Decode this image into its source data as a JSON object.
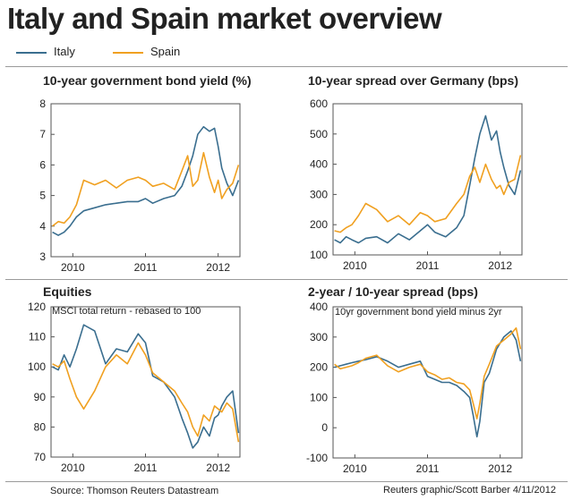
{
  "title": "Italy and Spain market overview",
  "legend": [
    {
      "label": "Italy",
      "color": "#3a6e8f"
    },
    {
      "label": "Spain",
      "color": "#f0a020"
    }
  ],
  "source": "Source: Thomson Reuters Datastream",
  "credit": "Reuters graphic/Scott Barber 4/11/2012",
  "chart_data": [
    {
      "type": "line",
      "title": "10-year government bond yield (%)",
      "subtitle": "",
      "ylim": [
        3,
        8
      ],
      "yticks": [
        3,
        4,
        5,
        6,
        7,
        8
      ],
      "xlim": [
        2009.7,
        2012.3
      ],
      "xticks": [
        {
          "value": 2010,
          "label": "2010"
        },
        {
          "value": 2011,
          "label": "2011"
        },
        {
          "value": 2012,
          "label": "2012"
        }
      ],
      "grid": false,
      "series": [
        {
          "name": "Italy",
          "x": [
            2009.72,
            2009.8,
            2009.88,
            2009.96,
            2010.05,
            2010.15,
            2010.3,
            2010.45,
            2010.6,
            2010.75,
            2010.9,
            2011.0,
            2011.1,
            2011.25,
            2011.4,
            2011.5,
            2011.58,
            2011.65,
            2011.72,
            2011.8,
            2011.88,
            2011.95,
            2012.0,
            2012.05,
            2012.12,
            2012.2,
            2012.28
          ],
          "y": [
            3.8,
            3.7,
            3.8,
            4.0,
            4.3,
            4.5,
            4.6,
            4.7,
            4.75,
            4.8,
            4.8,
            4.9,
            4.75,
            4.9,
            5.0,
            5.3,
            5.8,
            6.3,
            7.0,
            7.25,
            7.1,
            7.2,
            6.6,
            5.9,
            5.4,
            5.0,
            5.5
          ]
        },
        {
          "name": "Spain",
          "x": [
            2009.72,
            2009.8,
            2009.88,
            2009.96,
            2010.05,
            2010.15,
            2010.3,
            2010.45,
            2010.6,
            2010.75,
            2010.9,
            2011.0,
            2011.1,
            2011.25,
            2011.4,
            2011.5,
            2011.58,
            2011.65,
            2011.72,
            2011.8,
            2011.88,
            2011.95,
            2012.0,
            2012.05,
            2012.12,
            2012.2,
            2012.28
          ],
          "y": [
            4.0,
            4.15,
            4.1,
            4.3,
            4.7,
            5.5,
            5.35,
            5.5,
            5.25,
            5.5,
            5.6,
            5.5,
            5.3,
            5.4,
            5.2,
            5.8,
            6.3,
            5.3,
            5.5,
            6.4,
            5.6,
            5.1,
            5.5,
            4.9,
            5.2,
            5.4,
            6.0
          ]
        }
      ]
    },
    {
      "type": "line",
      "title": "10-year spread over Germany (bps)",
      "subtitle": "",
      "ylim": [
        100,
        600
      ],
      "yticks": [
        100,
        200,
        300,
        400,
        500,
        600
      ],
      "xlim": [
        2009.7,
        2012.3
      ],
      "xticks": [
        {
          "value": 2010,
          "label": "2010"
        },
        {
          "value": 2011,
          "label": "2011"
        },
        {
          "value": 2012,
          "label": "2012"
        }
      ],
      "grid": false,
      "series": [
        {
          "name": "Italy",
          "x": [
            2009.72,
            2009.8,
            2009.88,
            2009.96,
            2010.05,
            2010.15,
            2010.3,
            2010.45,
            2010.6,
            2010.75,
            2010.9,
            2011.0,
            2011.1,
            2011.25,
            2011.4,
            2011.5,
            2011.58,
            2011.65,
            2011.72,
            2011.8,
            2011.88,
            2011.95,
            2012.0,
            2012.05,
            2012.12,
            2012.2,
            2012.28
          ],
          "y": [
            150,
            140,
            160,
            150,
            140,
            155,
            160,
            140,
            170,
            150,
            180,
            200,
            175,
            160,
            190,
            230,
            330,
            420,
            500,
            560,
            480,
            510,
            440,
            390,
            330,
            300,
            380
          ]
        },
        {
          "name": "Spain",
          "x": [
            2009.72,
            2009.8,
            2009.88,
            2009.96,
            2010.05,
            2010.15,
            2010.3,
            2010.45,
            2010.6,
            2010.75,
            2010.9,
            2011.0,
            2011.1,
            2011.25,
            2011.4,
            2011.5,
            2011.58,
            2011.65,
            2011.72,
            2011.8,
            2011.88,
            2011.95,
            2012.0,
            2012.05,
            2012.12,
            2012.2,
            2012.28
          ],
          "y": [
            180,
            175,
            190,
            200,
            230,
            270,
            250,
            210,
            230,
            200,
            240,
            230,
            210,
            220,
            270,
            300,
            360,
            390,
            340,
            400,
            350,
            320,
            330,
            300,
            340,
            350,
            430
          ]
        }
      ]
    },
    {
      "type": "line",
      "title": "Equities",
      "subtitle": "MSCI total return - rebased to 100",
      "ylim": [
        70,
        120
      ],
      "yticks": [
        70,
        80,
        90,
        100,
        110,
        120
      ],
      "xlim": [
        2009.7,
        2012.3
      ],
      "xticks": [
        {
          "value": 2010,
          "label": "2010"
        },
        {
          "value": 2011,
          "label": "2011"
        },
        {
          "value": 2012,
          "label": "2012"
        }
      ],
      "grid": false,
      "series": [
        {
          "name": "Italy",
          "x": [
            2009.72,
            2009.8,
            2009.88,
            2009.96,
            2010.05,
            2010.15,
            2010.3,
            2010.45,
            2010.6,
            2010.75,
            2010.9,
            2011.0,
            2011.1,
            2011.25,
            2011.4,
            2011.5,
            2011.58,
            2011.65,
            2011.72,
            2011.8,
            2011.88,
            2011.95,
            2012.0,
            2012.05,
            2012.12,
            2012.2,
            2012.28
          ],
          "y": [
            100,
            99,
            104,
            100,
            106,
            114,
            112,
            101,
            106,
            105,
            111,
            108,
            97,
            95,
            90,
            83,
            78,
            73,
            75,
            80,
            77,
            83,
            84,
            87,
            90,
            92,
            78
          ]
        },
        {
          "name": "Spain",
          "x": [
            2009.72,
            2009.8,
            2009.88,
            2009.96,
            2010.05,
            2010.15,
            2010.3,
            2010.45,
            2010.6,
            2010.75,
            2010.9,
            2011.0,
            2011.1,
            2011.25,
            2011.4,
            2011.5,
            2011.58,
            2011.65,
            2011.72,
            2011.8,
            2011.88,
            2011.95,
            2012.0,
            2012.05,
            2012.12,
            2012.2,
            2012.28
          ],
          "y": [
            101,
            100,
            102,
            96,
            90,
            86,
            92,
            100,
            104,
            101,
            108,
            104,
            98,
            95,
            92,
            88,
            85,
            80,
            77,
            84,
            82,
            87,
            86,
            85,
            88,
            86,
            75
          ]
        }
      ]
    },
    {
      "type": "line",
      "title": "2-year / 10-year spread (bps)",
      "subtitle": "10yr government bond yield minus 2yr",
      "ylim": [
        -100,
        400
      ],
      "yticks": [
        -100,
        0,
        100,
        200,
        300,
        400
      ],
      "xlim": [
        2009.7,
        2012.3
      ],
      "xticks": [
        {
          "value": 2010,
          "label": "2010"
        },
        {
          "value": 2011,
          "label": "2011"
        },
        {
          "value": 2012,
          "label": "2012"
        }
      ],
      "grid": false,
      "series": [
        {
          "name": "Italy",
          "x": [
            2009.72,
            2009.8,
            2009.88,
            2009.96,
            2010.05,
            2010.15,
            2010.3,
            2010.45,
            2010.6,
            2010.75,
            2010.9,
            2011.0,
            2011.1,
            2011.2,
            2011.3,
            2011.4,
            2011.5,
            2011.58,
            2011.63,
            2011.68,
            2011.72,
            2011.78,
            2011.85,
            2011.95,
            2012.05,
            2012.15,
            2012.22,
            2012.28
          ],
          "y": [
            200,
            205,
            210,
            215,
            220,
            225,
            235,
            220,
            200,
            210,
            220,
            170,
            160,
            150,
            150,
            140,
            120,
            100,
            40,
            -30,
            20,
            150,
            180,
            260,
            300,
            320,
            290,
            220
          ]
        },
        {
          "name": "Spain",
          "x": [
            2009.72,
            2009.8,
            2009.88,
            2009.96,
            2010.05,
            2010.15,
            2010.3,
            2010.45,
            2010.6,
            2010.75,
            2010.9,
            2011.0,
            2011.1,
            2011.2,
            2011.3,
            2011.4,
            2011.5,
            2011.58,
            2011.63,
            2011.68,
            2011.72,
            2011.78,
            2011.85,
            2011.95,
            2012.05,
            2012.15,
            2012.22,
            2012.28
          ],
          "y": [
            210,
            195,
            200,
            205,
            215,
            230,
            240,
            205,
            185,
            200,
            210,
            185,
            175,
            160,
            165,
            150,
            145,
            125,
            80,
            30,
            80,
            170,
            210,
            270,
            290,
            310,
            330,
            260
          ]
        }
      ]
    }
  ]
}
